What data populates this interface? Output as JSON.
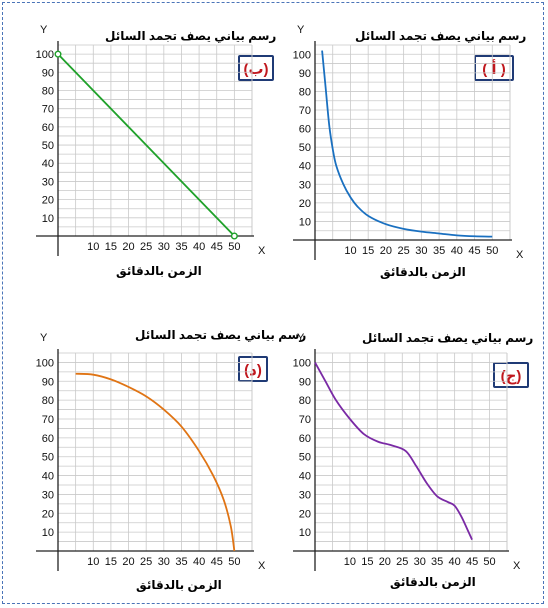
{
  "chart_data": [
    {
      "id": "b",
      "type": "line",
      "title": "رسم بياني يصف تجمد السائل",
      "xlabel": "الزمن بالدقائق",
      "badge": "(ب)",
      "x_axis_letter": "X",
      "y_axis_letter": "Y",
      "x_ticks": [
        10,
        15,
        20,
        25,
        30,
        35,
        40,
        45,
        50
      ],
      "y_ticks": [
        10,
        20,
        30,
        40,
        50,
        60,
        70,
        80,
        90,
        100
      ],
      "xlim": [
        0,
        55
      ],
      "ylim": [
        0,
        105
      ],
      "grid": true,
      "color": "#1fa12a",
      "markers": true,
      "series": [
        {
          "x": [
            0,
            50
          ],
          "y": [
            100,
            0
          ]
        }
      ]
    },
    {
      "id": "a",
      "type": "line",
      "title": "رسم بياني يصف تجمد السائل",
      "xlabel": "الزمن بالدقائق",
      "badge": "( أ )",
      "x_axis_letter": "X",
      "y_axis_letter": "Y",
      "x_ticks": [
        10,
        15,
        20,
        25,
        30,
        35,
        40,
        45,
        50
      ],
      "y_ticks": [
        10,
        20,
        30,
        40,
        50,
        60,
        70,
        80,
        90,
        100
      ],
      "xlim": [
        0,
        55
      ],
      "ylim": [
        0,
        105
      ],
      "grid": true,
      "color": "#1a70c0",
      "markers": false,
      "series": [
        {
          "x": [
            2,
            3,
            4,
            5,
            6,
            8,
            10,
            12,
            15,
            20,
            25,
            30,
            35,
            40,
            45,
            50
          ],
          "y": [
            102,
            82,
            62,
            49,
            40,
            30,
            23,
            18,
            13,
            8.5,
            6,
            4.5,
            3.5,
            2.5,
            2,
            1.8
          ]
        }
      ]
    },
    {
      "id": "d",
      "type": "line",
      "title": "رسم بياني يصف تجمد السائل",
      "xlabel": "الزمن بالدقائق",
      "badge": "(د)",
      "x_axis_letter": "X",
      "y_axis_letter": "Y",
      "x_ticks": [
        10,
        15,
        20,
        25,
        30,
        35,
        40,
        45,
        50
      ],
      "y_ticks": [
        10,
        20,
        30,
        40,
        50,
        60,
        70,
        80,
        90,
        100
      ],
      "xlim": [
        0,
        55
      ],
      "ylim": [
        0,
        105
      ],
      "grid": true,
      "color": "#e07414",
      "markers": false,
      "series": [
        {
          "x": [
            5,
            10,
            15,
            20,
            25,
            30,
            35,
            40,
            44,
            47,
            49,
            50
          ],
          "y": [
            94,
            93.5,
            91,
            87,
            82,
            75,
            66,
            53,
            40,
            27,
            13,
            0
          ]
        }
      ]
    },
    {
      "id": "j",
      "type": "line",
      "title": "رسم بياني يصف تجمد السائل",
      "xlabel": "الزمن بالدقائق",
      "badge": "(ج)",
      "x_axis_letter": "X",
      "y_axis_letter": "Y",
      "x_ticks": [
        10,
        15,
        20,
        25,
        30,
        35,
        40,
        45,
        50
      ],
      "y_ticks": [
        10,
        20,
        30,
        40,
        50,
        60,
        70,
        80,
        90,
        100
      ],
      "xlim": [
        0,
        55
      ],
      "ylim": [
        0,
        105
      ],
      "grid": true,
      "color": "#7a2aa5",
      "markers": false,
      "series": [
        {
          "x": [
            0,
            3,
            6,
            10,
            14,
            18,
            22,
            26,
            29,
            32,
            35,
            38,
            40,
            42,
            44,
            45
          ],
          "y": [
            100,
            90,
            80,
            70,
            62,
            58,
            56,
            53,
            45,
            36,
            29,
            26,
            24,
            18,
            10,
            6
          ]
        }
      ]
    }
  ]
}
